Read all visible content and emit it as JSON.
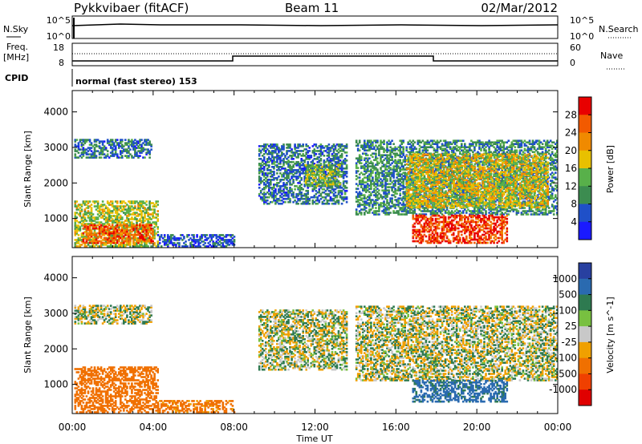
{
  "header": {
    "title": "Pykkvibaer (fitACF)",
    "beam": "Beam 11",
    "date": "02/Mar/2012",
    "mode": "normal (fast stereo) 153"
  },
  "params": {
    "nsky_label": "N.Sky",
    "nsky_ticks": [
      "10^5",
      "10^0"
    ],
    "nsearch_label": "N.Search",
    "nsearch_ticks": [
      "10^5",
      "10^0"
    ],
    "freq_label_1": "Freq.",
    "freq_label_2": "[MHz]",
    "freq_ticks": [
      "18",
      "8"
    ],
    "nave_label": "Nave",
    "nave_ticks": [
      "60",
      "0"
    ],
    "cpid_label": "CPID"
  },
  "colors": {
    "power": [
      "#1a1aff",
      "#1f50c8",
      "#3c8c50",
      "#58b04a",
      "#e8c000",
      "#f08a00",
      "#f25a00",
      "#e80000"
    ],
    "velocity": [
      "#2840a0",
      "#2a6ab0",
      "#2e7a50",
      "#78c040",
      "#c8c8c8",
      "#f0a000",
      "#f07000",
      "#f04000",
      "#e00000"
    ]
  },
  "chart_data": [
    {
      "type": "heatmap",
      "title": "Power",
      "xlabel": "Time UT",
      "ylabel": "Slant Range [km]",
      "xlim": [
        "00:00",
        "24:00"
      ],
      "x_ticks": [
        "00:00",
        "04:00",
        "08:00",
        "12:00",
        "16:00",
        "20:00",
        "00:00"
      ],
      "ylim": [
        180,
        4600
      ],
      "y_ticks": [
        1000,
        2000,
        3000,
        4000
      ],
      "colorbar": {
        "label": "Power [dB]",
        "ticks": [
          "4",
          "8",
          "12",
          "16",
          "20",
          "24",
          "28"
        ],
        "range": [
          0,
          30
        ]
      },
      "regions": [
        {
          "t0": 0.1,
          "t1": 3.9,
          "r0": 2700,
          "r1": 3200,
          "value": 8
        },
        {
          "t0": 0.1,
          "t1": 4.2,
          "r0": 200,
          "r1": 1500,
          "value": 16
        },
        {
          "t0": 0.5,
          "t1": 4.0,
          "r0": 300,
          "r1": 800,
          "value": 26
        },
        {
          "t0": 4.2,
          "t1": 8.0,
          "r0": 200,
          "r1": 550,
          "value": 6
        },
        {
          "t0": 9.2,
          "t1": 13.6,
          "r0": 1400,
          "r1": 3100,
          "value": 8
        },
        {
          "t0": 11.5,
          "t1": 13.2,
          "r0": 1900,
          "r1": 2500,
          "value": 14
        },
        {
          "t0": 14.0,
          "t1": 24.0,
          "r0": 1100,
          "r1": 3200,
          "value": 10
        },
        {
          "t0": 16.5,
          "t1": 23.5,
          "r0": 1300,
          "r1": 2800,
          "value": 18
        },
        {
          "t0": 16.8,
          "t1": 21.5,
          "r0": 300,
          "r1": 1100,
          "value": 28
        }
      ]
    },
    {
      "type": "heatmap",
      "title": "Velocity",
      "xlabel": "Time UT",
      "ylabel": "Slant Range [km]",
      "xlim": [
        "00:00",
        "24:00"
      ],
      "x_ticks": [
        "00:00",
        "04:00",
        "08:00",
        "12:00",
        "16:00",
        "20:00",
        "00:00"
      ],
      "ylim": [
        180,
        4600
      ],
      "y_ticks": [
        1000,
        2000,
        3000,
        4000
      ],
      "colorbar": {
        "label": "Velocity [m s^-1]",
        "ticks": [
          "1000",
          "500",
          "100",
          "25",
          "-25",
          "-100",
          "-500",
          "-1000"
        ]
      },
      "regions": [
        {
          "t0": 0.1,
          "t1": 3.9,
          "r0": 2700,
          "r1": 3200,
          "value": 0
        },
        {
          "t0": 0.1,
          "t1": 4.2,
          "r0": 200,
          "r1": 1500,
          "value": -200
        },
        {
          "t0": 4.2,
          "t1": 8.0,
          "r0": 200,
          "r1": 550,
          "value": -150
        },
        {
          "t0": 9.2,
          "t1": 13.6,
          "r0": 1400,
          "r1": 3100,
          "value": 0
        },
        {
          "t0": 14.0,
          "t1": 24.0,
          "r0": 1100,
          "r1": 3200,
          "value": 0
        },
        {
          "t0": 16.8,
          "t1": 21.5,
          "r0": 500,
          "r1": 1100,
          "value": 150
        }
      ]
    }
  ]
}
